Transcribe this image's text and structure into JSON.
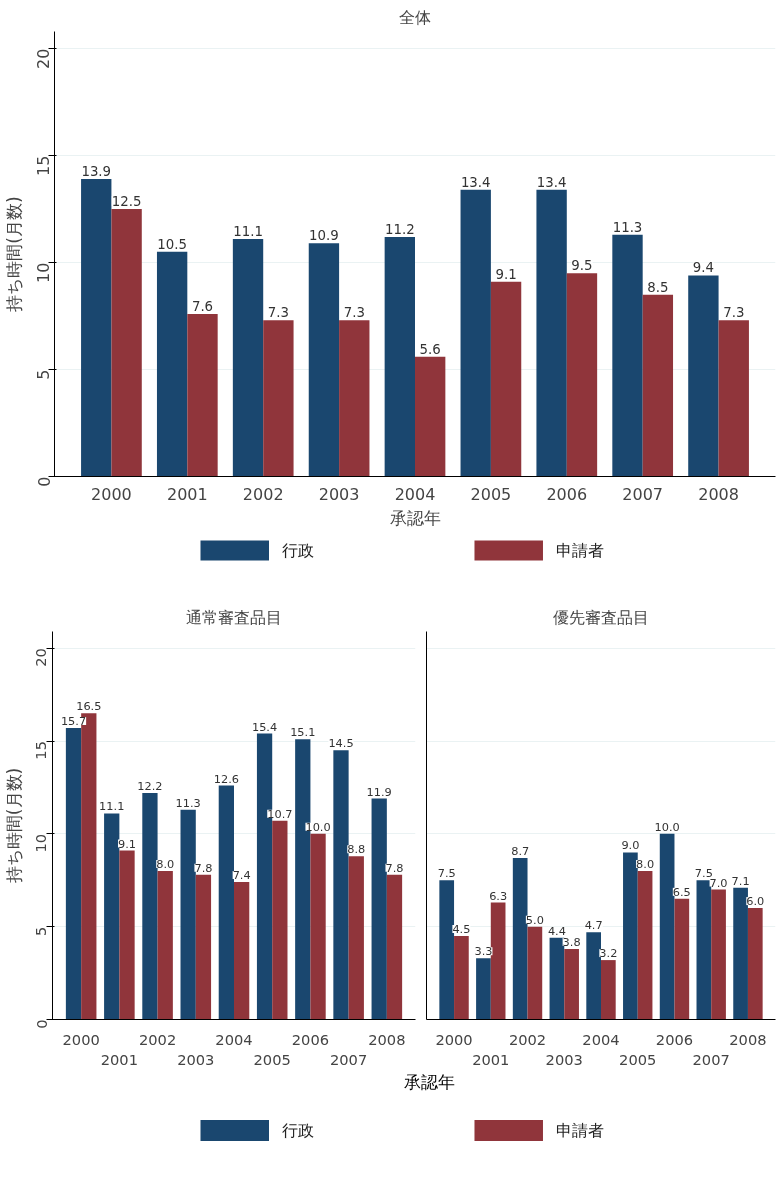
{
  "chart_data": [
    {
      "type": "bar",
      "title": "全体",
      "xlabel": "承認年",
      "ylabel": "持ち時間(月数)",
      "categories": [
        "2000",
        "2001",
        "2002",
        "2003",
        "2004",
        "2005",
        "2006",
        "2007",
        "2008"
      ],
      "series": [
        {
          "name": "行政",
          "color": "#1a476f",
          "values": [
            13.9,
            10.5,
            11.1,
            10.9,
            11.2,
            13.4,
            13.4,
            11.3,
            9.4
          ],
          "value_labels": [
            "13.9",
            "10.5",
            "11.1",
            "10.9",
            "11.2",
            "13.4",
            "13.4",
            "11.3",
            "9.4"
          ]
        },
        {
          "name": "申請者",
          "color": "#90353b",
          "values": [
            12.5,
            7.6,
            7.3,
            7.3,
            5.6,
            9.1,
            9.5,
            8.5,
            7.3
          ],
          "value_labels": [
            "12.5",
            "7.6",
            "7.3",
            "7.3",
            "5.6",
            "9.1",
            "9.5",
            "8.5",
            "7.3"
          ]
        }
      ],
      "ylim": [
        0,
        20.8
      ],
      "yticks": [
        0,
        5,
        10,
        15,
        20
      ],
      "grid": "y",
      "legend": "bottom"
    },
    {
      "type": "bar",
      "title": "通常審査品目",
      "ylabel": "持ち時間(月数)",
      "categories": [
        "2000",
        "2001",
        "2002",
        "2003",
        "2004",
        "2005",
        "2006",
        "2007",
        "2008"
      ],
      "series": [
        {
          "color": "#1a476f",
          "values": [
            15.7,
            11.1,
            12.2,
            11.3,
            12.6,
            15.4,
            15.1,
            14.5,
            11.9
          ],
          "value_labels": [
            "15.7",
            "11.1",
            "12.2",
            "11.3",
            "12.6",
            "15.4",
            "15.1",
            "14.5",
            "11.9"
          ]
        },
        {
          "color": "#90353b",
          "values": [
            16.5,
            9.1,
            8.0,
            7.8,
            7.4,
            10.7,
            10.0,
            8.8,
            7.8
          ],
          "value_labels": [
            "16.5",
            "9.1",
            "8.0",
            "7.8",
            "7.4",
            "10.7",
            "10.0",
            "8.8",
            "7.8"
          ]
        }
      ],
      "ylim": [
        0,
        20.9
      ],
      "yticks": [
        0,
        5,
        10,
        15,
        20
      ],
      "grid": "y"
    },
    {
      "type": "bar",
      "title": "優先審査品目",
      "xlabel": "承認年",
      "categories": [
        "2000",
        "2001",
        "2002",
        "2003",
        "2004",
        "2005",
        "2006",
        "2007",
        "2008"
      ],
      "series": [
        {
          "name": "行政",
          "color": "#1a476f",
          "values": [
            7.5,
            3.3,
            8.7,
            4.4,
            4.7,
            9.0,
            10.0,
            7.5,
            7.1
          ],
          "value_labels": [
            "7.5",
            "3.3",
            "8.7",
            "4.4",
            "4.7",
            "9.0",
            "10.0",
            "7.5",
            "7.1"
          ]
        },
        {
          "name": "申請者",
          "color": "#90353b",
          "values": [
            4.5,
            6.3,
            5.0,
            3.8,
            3.2,
            8.0,
            6.5,
            7.0,
            6.0
          ],
          "value_labels": [
            "4.5",
            "6.3",
            "5.0",
            "3.8",
            "3.2",
            "8.0",
            "6.5",
            "7.0",
            "6.0"
          ]
        }
      ],
      "ylim": [
        0,
        20.9
      ],
      "yticks": [
        0,
        5,
        10,
        15,
        20
      ],
      "grid": "y",
      "tick_labels": "x",
      "legend": "bottom"
    }
  ]
}
